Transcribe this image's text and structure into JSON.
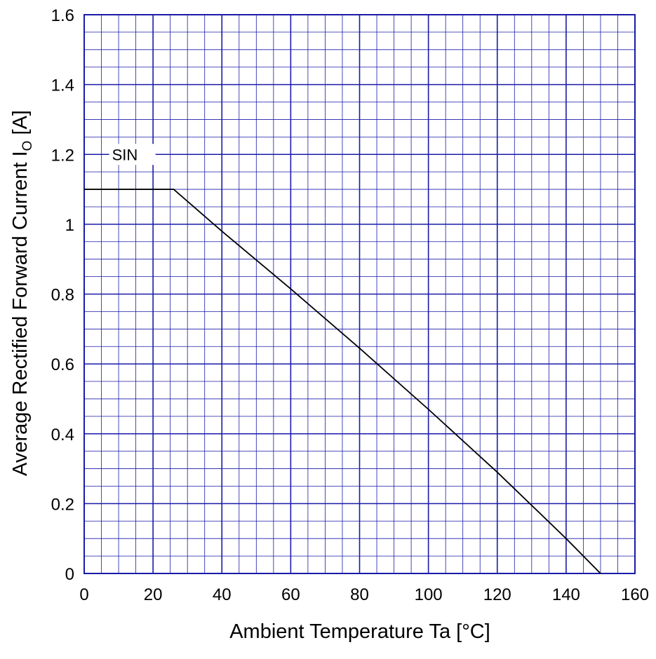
{
  "chart_data": {
    "type": "line",
    "title": "",
    "xlabel": "Ambient Temperature   Ta   [°C]",
    "ylabel_main": "Average Rectified Forward Current  I",
    "ylabel_sub": "O",
    "ylabel_unit": "  [A]",
    "xlim": [
      0,
      160
    ],
    "ylim": [
      0,
      1.6
    ],
    "x_ticks": [
      "0",
      "20",
      "40",
      "60",
      "80",
      "100",
      "120",
      "140",
      "160"
    ],
    "y_ticks": [
      "0",
      "0.2",
      "0.4",
      "0.6",
      "0.8",
      "1",
      "1.2",
      "1.4",
      "1.6"
    ],
    "x_minor_step": 5,
    "y_minor_step": 0.05,
    "grid": true,
    "series": [
      {
        "name": "SIN",
        "x": [
          0,
          26,
          40,
          60,
          80,
          100,
          120,
          140,
          150
        ],
        "y": [
          1.1,
          1.1,
          0.98,
          0.815,
          0.645,
          0.47,
          0.29,
          0.1,
          0
        ]
      }
    ],
    "annotations": [
      {
        "text": "SIN",
        "x": 4,
        "y": 1.2
      }
    ],
    "colors": {
      "grid": "#1a1aa8",
      "frame": "#1a1aa8",
      "line": "#000000"
    }
  }
}
